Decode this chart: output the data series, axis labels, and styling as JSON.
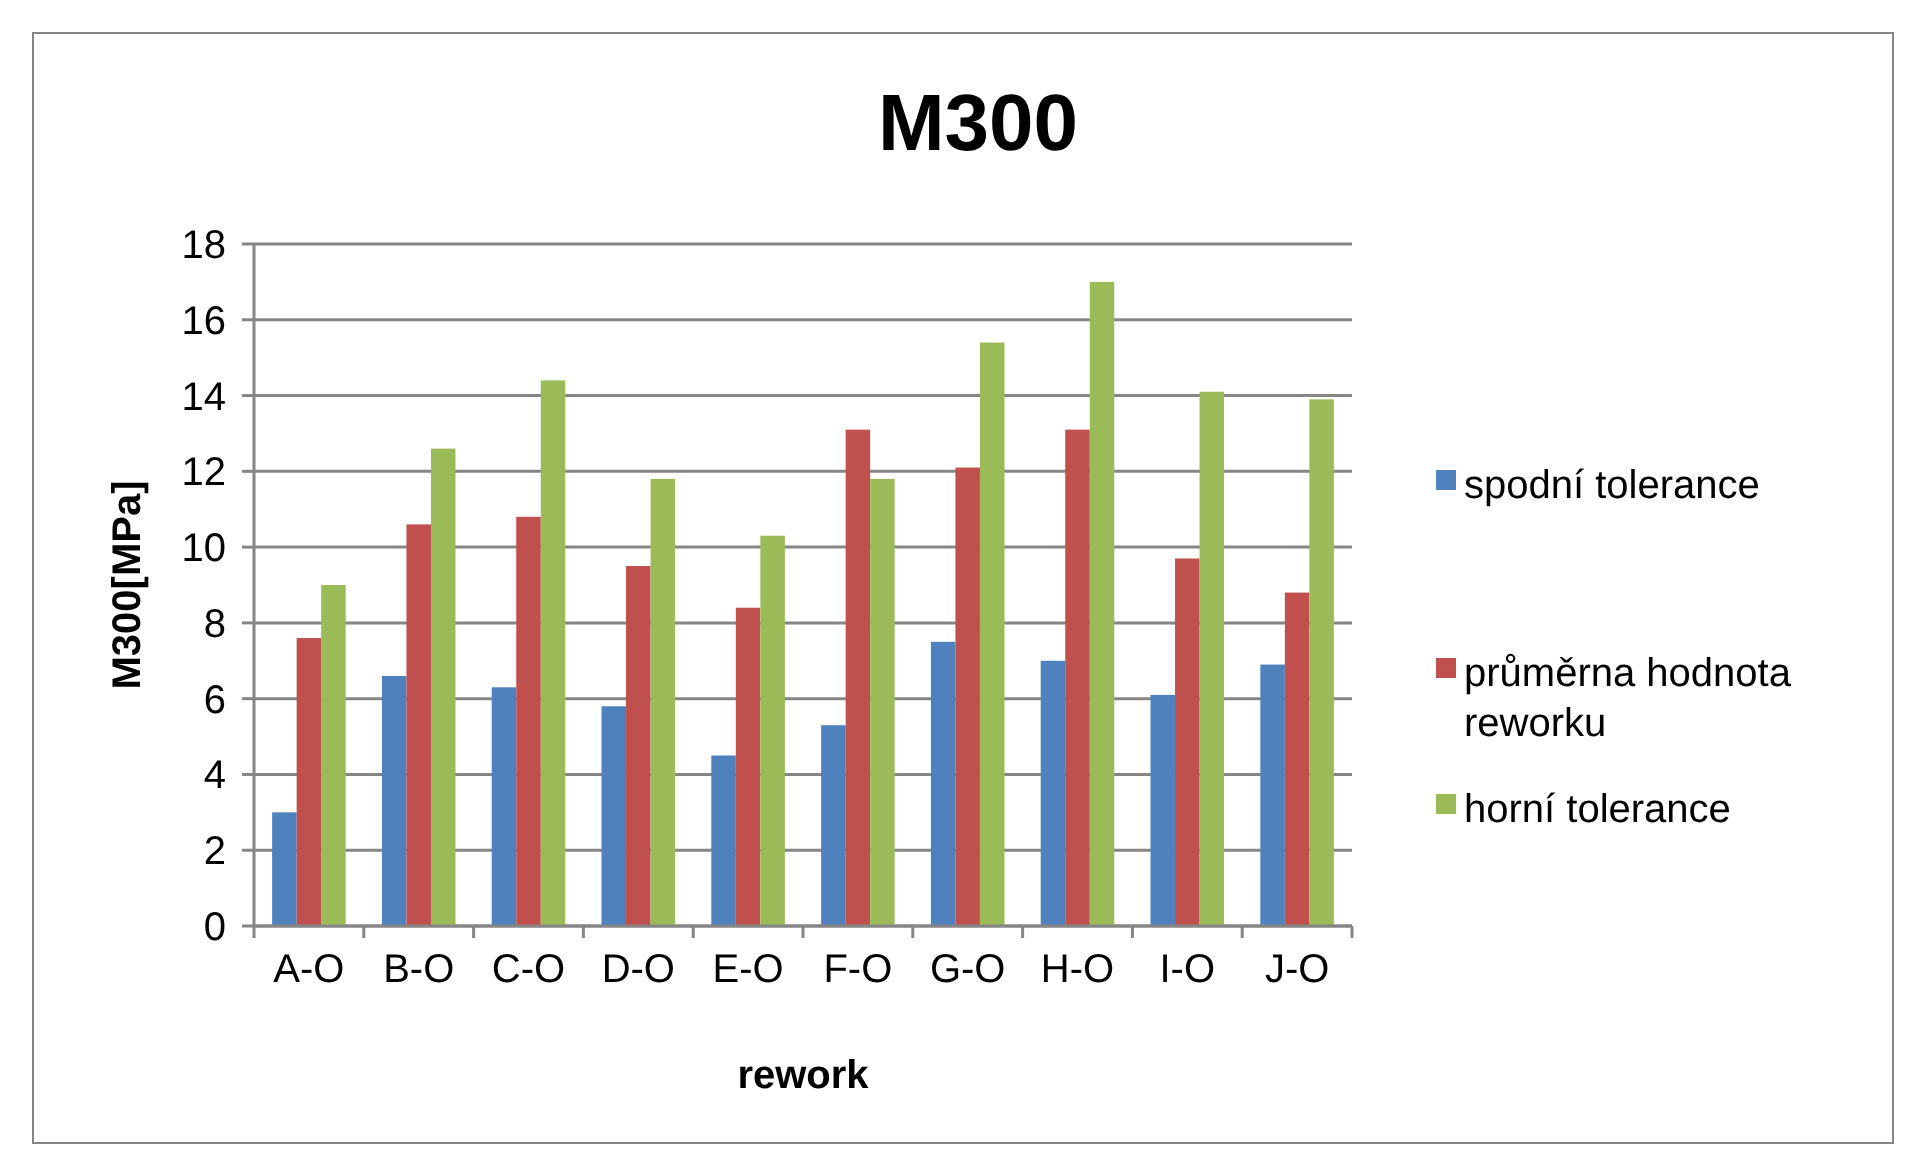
{
  "chart_data": {
    "type": "bar",
    "title": "M300",
    "xlabel": "rework",
    "ylabel": "M300[MPa]",
    "categories": [
      "A-O",
      "B-O",
      "C-O",
      "D-O",
      "E-O",
      "F-O",
      "G-O",
      "H-O",
      "I-O",
      "J-O"
    ],
    "series": [
      {
        "name": "spodní tolerance",
        "color": "#4f81bd",
        "values": [
          3,
          6.6,
          6.3,
          5.8,
          4.5,
          5.3,
          7.5,
          7.0,
          6.1,
          6.9
        ]
      },
      {
        "name": "průměrna hodnota reworku",
        "color": "#c0504d",
        "values": [
          7.6,
          10.6,
          10.8,
          9.5,
          8.4,
          13.1,
          12.1,
          13.1,
          9.7,
          8.8
        ]
      },
      {
        "name": "horní tolerance",
        "color": "#9bbb59",
        "values": [
          9,
          12.6,
          14.4,
          11.8,
          10.3,
          11.8,
          15.4,
          17.0,
          14.1,
          13.9
        ]
      }
    ],
    "ylim": [
      0,
      18
    ],
    "yticks": [
      0,
      2,
      4,
      6,
      8,
      10,
      12,
      14,
      16,
      18
    ],
    "grid": "y",
    "legend": "right"
  }
}
